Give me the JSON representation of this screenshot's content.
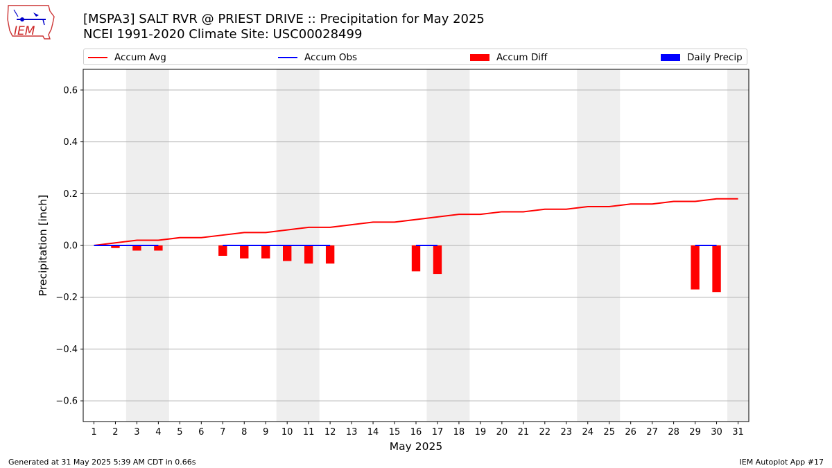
{
  "header": {
    "title_line1": "[MSPA3] SALT RVR @ PRIEST DRIVE :: Precipitation for May 2025",
    "title_line2": "NCEI 1991-2020 Climate Site: USC00028499",
    "logo_text": "IEM"
  },
  "legend": {
    "items": [
      {
        "label": "Accum Avg",
        "kind": "line",
        "color": "#ff0000"
      },
      {
        "label": "Accum Obs",
        "kind": "line",
        "color": "#0000ff"
      },
      {
        "label": "Accum Diff",
        "kind": "patch",
        "color": "#ff0000"
      },
      {
        "label": "Daily Precip",
        "kind": "patch",
        "color": "#0000ff"
      }
    ]
  },
  "footer": {
    "left": "Generated at 31 May 2025 5:39 AM CDT in 0.66s",
    "right": "IEM Autoplot App #17"
  },
  "chart_data": {
    "type": "bar",
    "xlabel": "May 2025",
    "ylabel": "Precipitation [inch]",
    "xlim": [
      0.5,
      31.5
    ],
    "ylim": [
      -0.68,
      0.68
    ],
    "x_ticks": [
      1,
      2,
      3,
      4,
      5,
      6,
      7,
      8,
      9,
      10,
      11,
      12,
      13,
      14,
      15,
      16,
      17,
      18,
      19,
      20,
      21,
      22,
      23,
      24,
      25,
      26,
      27,
      28,
      29,
      30,
      31
    ],
    "y_ticks": [
      -0.6,
      -0.4,
      -0.2,
      0.0,
      0.2,
      0.4,
      0.6
    ],
    "y_tick_labels": [
      "−0.6",
      "−0.4",
      "−0.2",
      "0.0",
      "0.2",
      "0.4",
      "0.6"
    ],
    "grid": "y",
    "weekend_shading": [
      [
        2.5,
        4.5
      ],
      [
        9.5,
        11.5
      ],
      [
        16.5,
        18.5
      ],
      [
        23.5,
        25.5
      ],
      [
        30.5,
        31.5
      ]
    ],
    "weekend_color": "#eeeeee",
    "series": [
      {
        "name": "Accum Avg",
        "kind": "line",
        "color": "#ff0000",
        "x": [
          1,
          2,
          3,
          4,
          5,
          6,
          7,
          8,
          9,
          10,
          11,
          12,
          13,
          14,
          15,
          16,
          17,
          18,
          19,
          20,
          21,
          22,
          23,
          24,
          25,
          26,
          27,
          28,
          29,
          30,
          31
        ],
        "values": [
          0.0,
          0.01,
          0.02,
          0.02,
          0.03,
          0.03,
          0.04,
          0.05,
          0.05,
          0.06,
          0.07,
          0.07,
          0.08,
          0.09,
          0.09,
          0.1,
          0.11,
          0.12,
          0.12,
          0.13,
          0.13,
          0.14,
          0.14,
          0.15,
          0.15,
          0.16,
          0.16,
          0.17,
          0.17,
          0.18,
          0.18
        ]
      },
      {
        "name": "Accum Obs",
        "kind": "line",
        "color": "#0000ff",
        "segments": [
          {
            "x": [
              1,
              2,
              3,
              4
            ],
            "values": [
              0,
              0,
              0,
              0
            ]
          },
          {
            "x": [
              7,
              8,
              9,
              10,
              11,
              12
            ],
            "values": [
              0,
              0,
              0,
              0,
              0,
              0
            ]
          },
          {
            "x": [
              16,
              17
            ],
            "values": [
              0,
              0
            ]
          },
          {
            "x": [
              29,
              30
            ],
            "values": [
              0,
              0
            ]
          }
        ]
      },
      {
        "name": "Accum Diff",
        "kind": "bar",
        "color": "#ff0000",
        "x": [
          2,
          3,
          4,
          7,
          8,
          9,
          10,
          11,
          12,
          16,
          17,
          29,
          30
        ],
        "values": [
          -0.01,
          -0.02,
          -0.02,
          -0.04,
          -0.05,
          -0.05,
          -0.06,
          -0.07,
          -0.07,
          -0.1,
          -0.11,
          -0.17,
          -0.18
        ]
      },
      {
        "name": "Daily Precip",
        "kind": "bar",
        "color": "#0000ff",
        "x": [],
        "values": []
      }
    ]
  }
}
